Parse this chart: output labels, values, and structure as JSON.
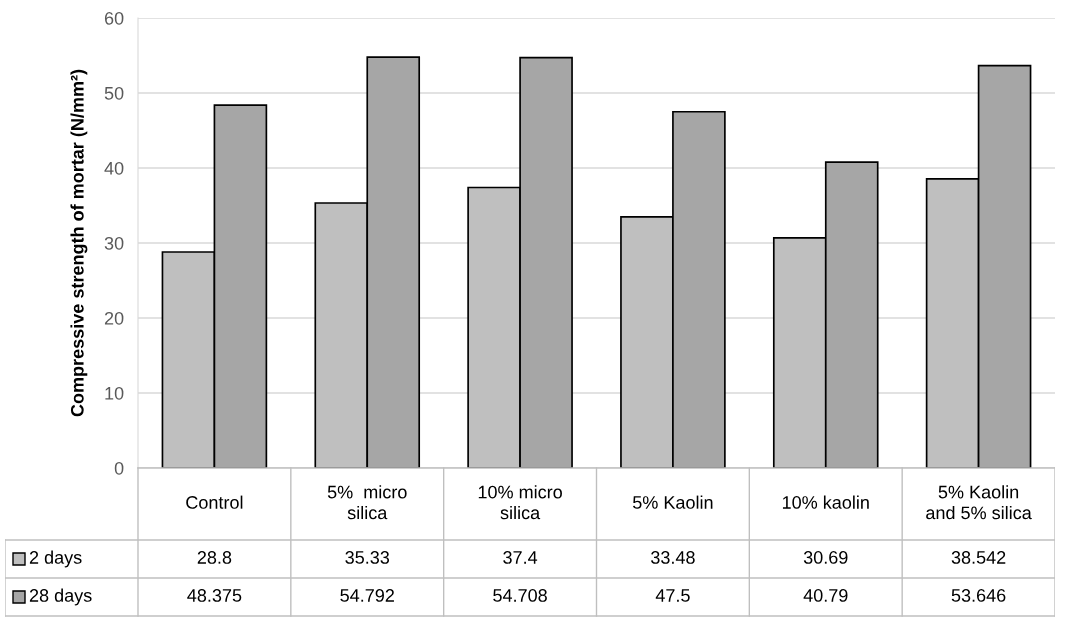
{
  "chart_data": {
    "type": "bar",
    "ylabel": "Compressive strength of mortar (N/mm²)",
    "categories": [
      "Control",
      "5%  micro\nsilica",
      "10% micro\nsilica",
      "5% Kaolin",
      "10% kaolin",
      "5% Kaolin\nand 5% silica"
    ],
    "series": [
      {
        "name": "2 days",
        "color": "#bfbfbf",
        "values": [
          28.8,
          35.33,
          37.4,
          33.48,
          30.69,
          38.542
        ],
        "value_labels": [
          "28.8",
          "35.33",
          "37.4",
          "33.48",
          "30.69",
          "38.542"
        ]
      },
      {
        "name": "28 days",
        "color": "#a6a6a6",
        "values": [
          48.375,
          54.792,
          54.708,
          47.5,
          40.79,
          53.646
        ],
        "value_labels": [
          "48.375",
          "54.792",
          "54.708",
          "47.5",
          "40.79",
          "53.646"
        ]
      }
    ],
    "ylim": [
      0,
      60
    ],
    "yticks": [
      0,
      10,
      20,
      30,
      40,
      50,
      60
    ],
    "grid": "y",
    "legend": "bottom"
  }
}
